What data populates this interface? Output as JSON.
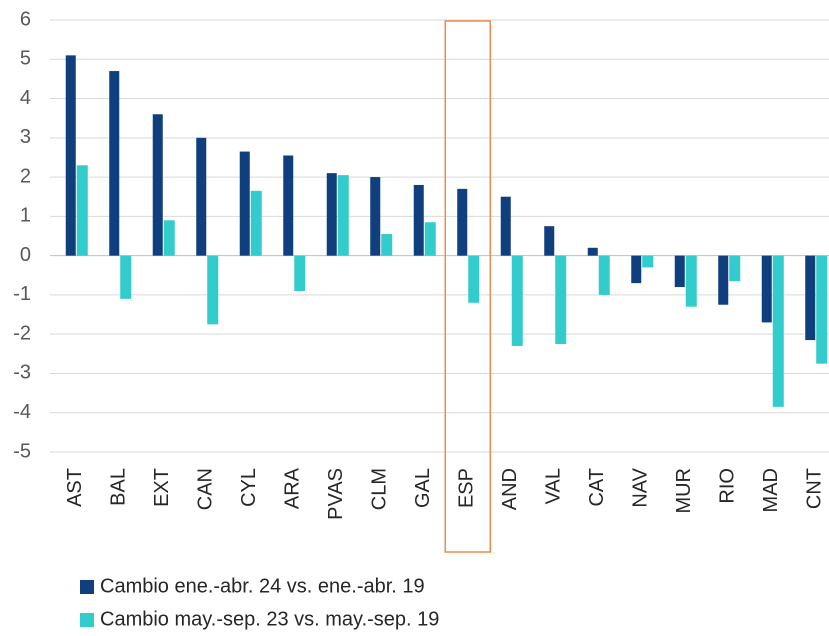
{
  "chart_data": {
    "type": "bar",
    "categories": [
      "AST",
      "BAL",
      "EXT",
      "CAN",
      "CYL",
      "ARA",
      "PVAS",
      "CLM",
      "GAL",
      "ESP",
      "AND",
      "VAL",
      "CAT",
      "NAV",
      "MUR",
      "RIO",
      "MAD",
      "CNT"
    ],
    "series": [
      {
        "name": "Cambio ene.-abr. 24 vs. ene.-abr. 19",
        "color": "#0f3f7c",
        "values": [
          5.1,
          4.7,
          3.6,
          3.0,
          2.65,
          2.55,
          2.1,
          2.0,
          1.8,
          1.7,
          1.5,
          0.75,
          0.2,
          -0.7,
          -0.8,
          -1.25,
          -1.7,
          -2.15
        ]
      },
      {
        "name": "Cambio may.-sep. 23 vs. may.-sep. 19",
        "color": "#33cccc",
        "values": [
          2.3,
          -1.1,
          0.9,
          -1.75,
          1.65,
          -0.9,
          2.05,
          0.55,
          0.85,
          -1.2,
          -2.3,
          -2.25,
          -1.0,
          -0.3,
          -1.3,
          -0.65,
          -3.85,
          -2.75
        ]
      }
    ],
    "ylim": [
      -5,
      6
    ],
    "yticks": [
      -5,
      -4,
      -3,
      -2,
      -1,
      0,
      1,
      2,
      3,
      4,
      5,
      6
    ],
    "grid": true,
    "highlight_category": "ESP",
    "highlight_color": "#f08c4a",
    "legend": "bottom"
  }
}
